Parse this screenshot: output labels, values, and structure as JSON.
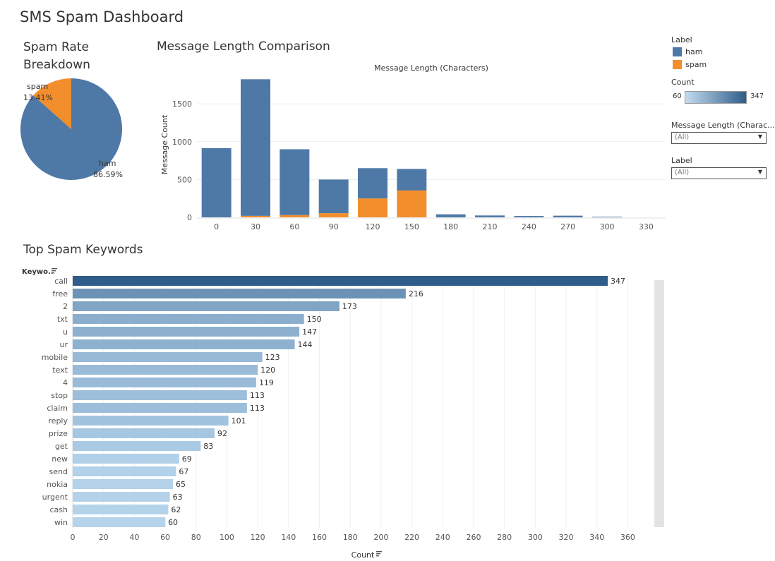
{
  "dashboard_title": "SMS Spam Dashboard",
  "sections": {
    "pie_title": "Spam Rate Breakdown",
    "length_title": "Message Length Comparison",
    "keywords_title": "Top Spam Keywords"
  },
  "legend": {
    "title": "Label",
    "items": [
      {
        "label": "ham",
        "color": "#4e79a7"
      },
      {
        "label": "spam",
        "color": "#f28e2b"
      }
    ],
    "count_title": "Count",
    "count_min": "60",
    "count_max": "347"
  },
  "filters": [
    {
      "label": "Message Length (Charac...",
      "value": "(All)"
    },
    {
      "label": "Label",
      "value": "(All)"
    }
  ],
  "chart_data": [
    {
      "type": "pie",
      "title": "Spam Rate Breakdown",
      "slices": [
        {
          "label": "ham",
          "value": 86.59,
          "display": "86.59%",
          "color": "#4e79a7"
        },
        {
          "label": "spam",
          "value": 13.41,
          "display": "13.41%",
          "color": "#f28e2b"
        }
      ]
    },
    {
      "type": "bar",
      "stacked": true,
      "title": "Message Length Comparison",
      "header": "Message Length (Characters)",
      "xlabel": "",
      "ylabel": "Message Count",
      "categories": [
        "0",
        "30",
        "60",
        "90",
        "120",
        "150",
        "180",
        "210",
        "240",
        "270",
        "300",
        "330"
      ],
      "series": [
        {
          "name": "ham",
          "color": "#4e79a7",
          "values": [
            915,
            1805,
            870,
            445,
            400,
            285,
            40,
            25,
            18,
            22,
            8,
            0
          ]
        },
        {
          "name": "spam",
          "color": "#f28e2b",
          "values": [
            0,
            20,
            30,
            55,
            250,
            355,
            0,
            0,
            0,
            0,
            0,
            0
          ]
        }
      ],
      "yticks": [
        0,
        500,
        1000,
        1500
      ],
      "ylim": [
        0,
        1850
      ],
      "grid": true
    },
    {
      "type": "bar",
      "orientation": "horizontal",
      "title": "Top Spam Keywords",
      "ylabel": "Keywo..",
      "xlabel": "Count",
      "categories": [
        "call",
        "free",
        "2",
        "txt",
        "u",
        "ur",
        "mobile",
        "text",
        "4",
        "stop",
        "claim",
        "reply",
        "prize",
        "get",
        "new",
        "send",
        "nokia",
        "urgent",
        "cash",
        "win"
      ],
      "values": [
        347,
        216,
        173,
        150,
        147,
        144,
        123,
        120,
        119,
        113,
        113,
        101,
        92,
        83,
        69,
        67,
        65,
        63,
        62,
        60
      ],
      "xticks": [
        0,
        20,
        40,
        60,
        80,
        100,
        120,
        140,
        160,
        180,
        200,
        220,
        240,
        260,
        280,
        300,
        320,
        340,
        360
      ],
      "xlim": [
        0,
        378
      ],
      "color_scale": {
        "min": 60,
        "max": 347,
        "min_color": "#b5d4ec",
        "max_color": "#2f5c8a"
      },
      "grid": true
    }
  ]
}
